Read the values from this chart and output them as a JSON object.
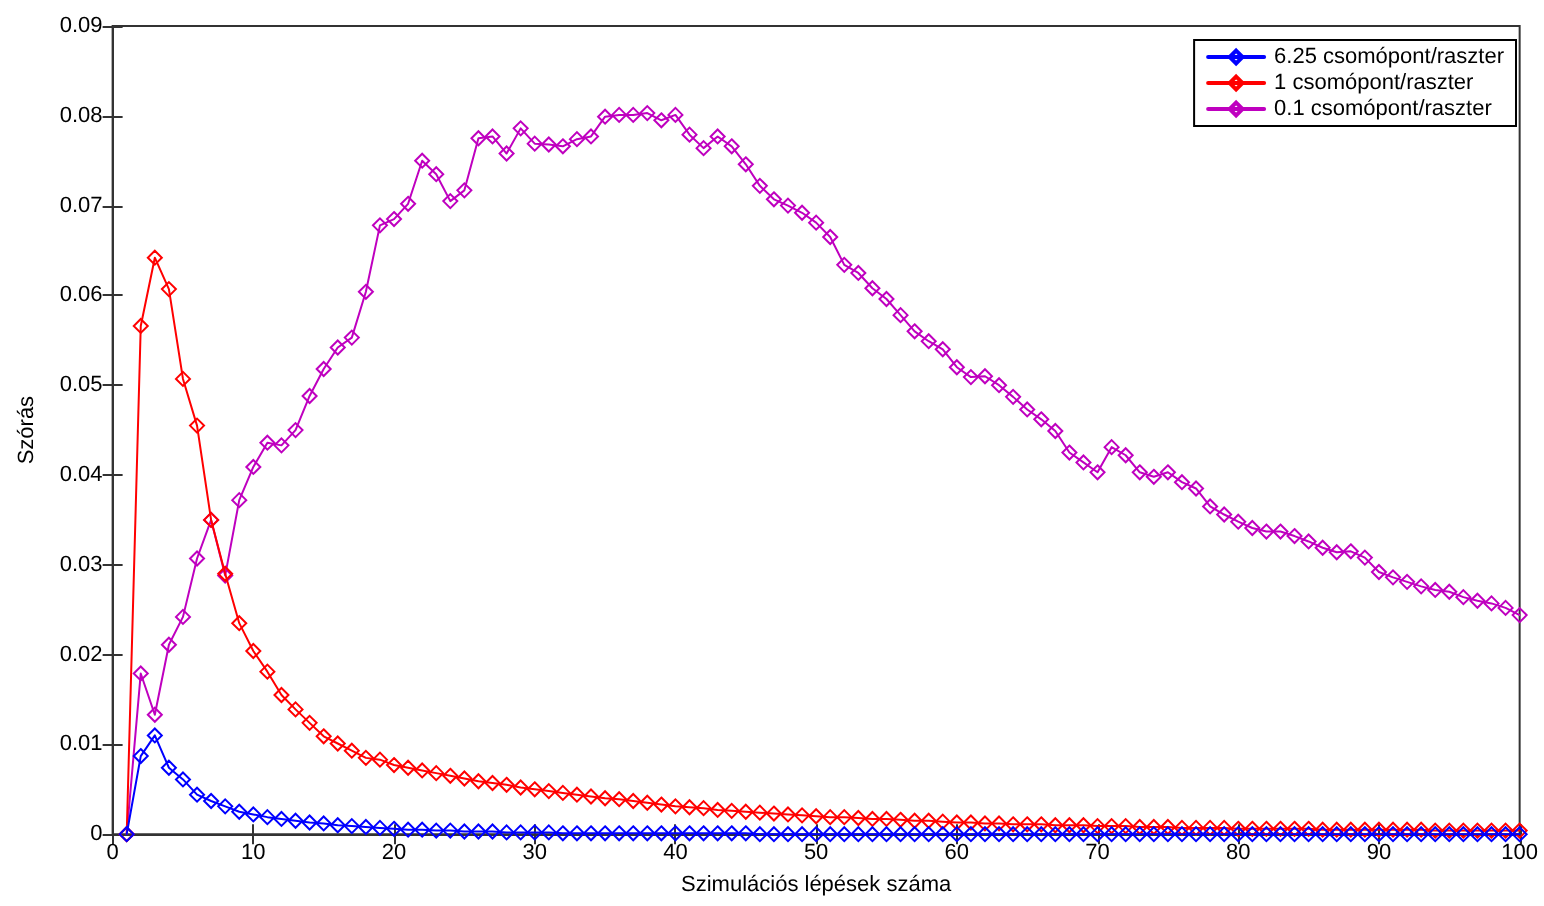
{
  "chart_data": {
    "type": "line",
    "xlabel": "Szimulációs lépések száma",
    "ylabel": "Szórás",
    "x": [
      1,
      2,
      3,
      4,
      5,
      6,
      7,
      8,
      9,
      10,
      11,
      12,
      13,
      14,
      15,
      16,
      17,
      18,
      19,
      20,
      21,
      22,
      23,
      24,
      25,
      26,
      27,
      28,
      29,
      30,
      31,
      32,
      33,
      34,
      35,
      36,
      37,
      38,
      39,
      40,
      41,
      42,
      43,
      44,
      45,
      46,
      47,
      48,
      49,
      50,
      51,
      52,
      53,
      54,
      55,
      56,
      57,
      58,
      59,
      60,
      61,
      62,
      63,
      64,
      65,
      66,
      67,
      68,
      69,
      70,
      71,
      72,
      73,
      74,
      75,
      76,
      77,
      78,
      79,
      80,
      81,
      82,
      83,
      84,
      85,
      86,
      87,
      88,
      89,
      90,
      91,
      92,
      93,
      94,
      95,
      96,
      97,
      98,
      99,
      100
    ],
    "series": [
      {
        "name": "6.25 csomópont/raszter",
        "color": "#0000ff",
        "values": [
          0,
          0.0087,
          0.011,
          0.0074,
          0.0061,
          0.0044,
          0.0037,
          0.0031,
          0.0025,
          0.0022,
          0.0019,
          0.0017,
          0.0015,
          0.0013,
          0.0012,
          0.001,
          0.0009,
          0.0008,
          0.0007,
          0.0006,
          0.0005,
          0.0005,
          0.0004,
          0.0004,
          0.0003,
          0.0003,
          0.0003,
          0.0002,
          0.0002,
          0.0002,
          0.0002,
          0.0001,
          0.0001,
          0.0001,
          0.0001,
          0.0001,
          0.0001,
          0.0001,
          0.0001,
          0.0001,
          0.0001,
          0.0001,
          0.0001,
          0.0001,
          0.0001,
          0,
          0,
          0,
          0,
          0,
          0,
          0,
          0,
          0,
          0,
          0,
          0,
          0,
          0,
          0,
          0,
          0,
          0,
          0,
          0,
          0,
          0,
          0,
          0,
          0,
          0,
          0,
          0,
          0,
          0,
          0,
          0,
          0,
          0,
          0,
          0,
          0,
          0,
          0,
          0,
          0,
          0,
          0,
          0,
          0,
          0,
          0,
          0,
          0,
          0,
          0,
          0,
          0,
          0,
          0
        ]
      },
      {
        "name": "1 csomópont/raszter",
        "color": "#ff0000",
        "values": [
          0,
          0.0566,
          0.0642,
          0.0607,
          0.0507,
          0.0455,
          0.035,
          0.029,
          0.0235,
          0.0204,
          0.0181,
          0.0155,
          0.0139,
          0.0124,
          0.0109,
          0.0101,
          0.0093,
          0.0085,
          0.0083,
          0.0077,
          0.0074,
          0.0071,
          0.0068,
          0.0065,
          0.0062,
          0.0059,
          0.0057,
          0.0055,
          0.0052,
          0.005,
          0.0048,
          0.0046,
          0.0044,
          0.0042,
          0.004,
          0.0039,
          0.0037,
          0.0035,
          0.0033,
          0.0031,
          0.003,
          0.0029,
          0.0027,
          0.0026,
          0.0025,
          0.0024,
          0.0023,
          0.0022,
          0.0021,
          0.002,
          0.0019,
          0.0019,
          0.0018,
          0.0017,
          0.0017,
          0.0016,
          0.0015,
          0.0015,
          0.0014,
          0.0013,
          0.0013,
          0.0012,
          0.0012,
          0.0011,
          0.0011,
          0.0011,
          0.001,
          0.001,
          0.001,
          0.0009,
          0.0009,
          0.0009,
          0.0008,
          0.0008,
          0.0008,
          0.0007,
          0.0007,
          0.0007,
          0.0007,
          0.0006,
          0.0006,
          0.0006,
          0.0006,
          0.0006,
          0.0006,
          0.0005,
          0.0005,
          0.0005,
          0.0005,
          0.0005,
          0.0005,
          0.0005,
          0.0005,
          0.0004,
          0.0004,
          0.0004,
          0.0004,
          0.0004,
          0.0004,
          0.0004
        ]
      },
      {
        "name": "0.1 csomópont/raszter",
        "color": "#bf00bf",
        "values": [
          0,
          0.0179,
          0.0133,
          0.0211,
          0.0242,
          0.0307,
          0.035,
          0.0288,
          0.0372,
          0.0409,
          0.0436,
          0.0433,
          0.045,
          0.0488,
          0.0518,
          0.0542,
          0.0553,
          0.0604,
          0.0678,
          0.0685,
          0.0702,
          0.075,
          0.0735,
          0.0705,
          0.0717,
          0.0775,
          0.0777,
          0.0758,
          0.0786,
          0.0769,
          0.0768,
          0.0766,
          0.0774,
          0.0777,
          0.0799,
          0.0801,
          0.0801,
          0.0803,
          0.0795,
          0.0801,
          0.0779,
          0.0764,
          0.0777,
          0.0766,
          0.0746,
          0.0722,
          0.0707,
          0.07,
          0.0692,
          0.0681,
          0.0665,
          0.0634,
          0.0625,
          0.0608,
          0.0596,
          0.0578,
          0.056,
          0.0549,
          0.054,
          0.052,
          0.0509,
          0.051,
          0.05,
          0.0487,
          0.0473,
          0.0462,
          0.0449,
          0.0425,
          0.0414,
          0.0403,
          0.0431,
          0.0422,
          0.0403,
          0.0398,
          0.0403,
          0.0392,
          0.0385,
          0.0365,
          0.0356,
          0.0348,
          0.0341,
          0.0337,
          0.0337,
          0.0332,
          0.0326,
          0.0319,
          0.0314,
          0.0315,
          0.0308,
          0.0292,
          0.0286,
          0.0281,
          0.0276,
          0.0272,
          0.027,
          0.0264,
          0.026,
          0.0257,
          0.0252,
          0.0244
        ]
      }
    ],
    "xlim": [
      0,
      100
    ],
    "xticks": [
      0,
      10,
      20,
      30,
      40,
      50,
      60,
      70,
      80,
      90,
      100
    ],
    "ylim": [
      0,
      0.09
    ],
    "yticks": [
      0,
      0.01,
      0.02,
      0.03,
      0.04,
      0.05,
      0.06,
      0.07,
      0.08,
      0.09
    ],
    "legend": "top right",
    "marker": "diamond",
    "line_style": "solid",
    "grid": false
  }
}
